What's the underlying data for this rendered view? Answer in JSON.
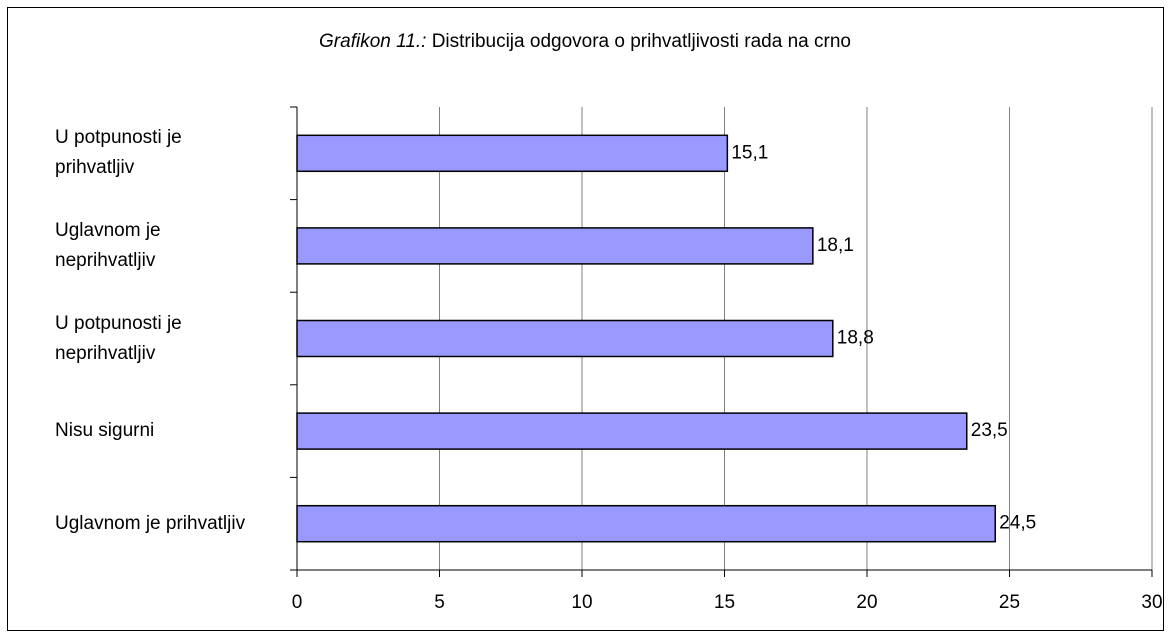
{
  "chart_data": {
    "type": "barh",
    "title_label": "Grafikon 11.:",
    "title": "Distribucija odgovora o prihvatljivosti rada na crno",
    "categories": [
      "U potpunosti je prihvatljiv",
      "Uglavnom je neprihvatljiv",
      "U potpunosti je neprihvatljiv",
      "Nisu sigurni",
      "Uglavnom je prihvatljiv"
    ],
    "values": [
      15.1,
      18.1,
      18.8,
      23.5,
      24.5
    ],
    "value_labels": [
      "15,1",
      "18,1",
      "18,8",
      "23,5",
      "24,5"
    ],
    "color": "#9999ff",
    "xlim": [
      0,
      30
    ],
    "xticks": [
      0,
      5,
      10,
      15,
      20,
      25,
      30
    ],
    "grid": true
  }
}
